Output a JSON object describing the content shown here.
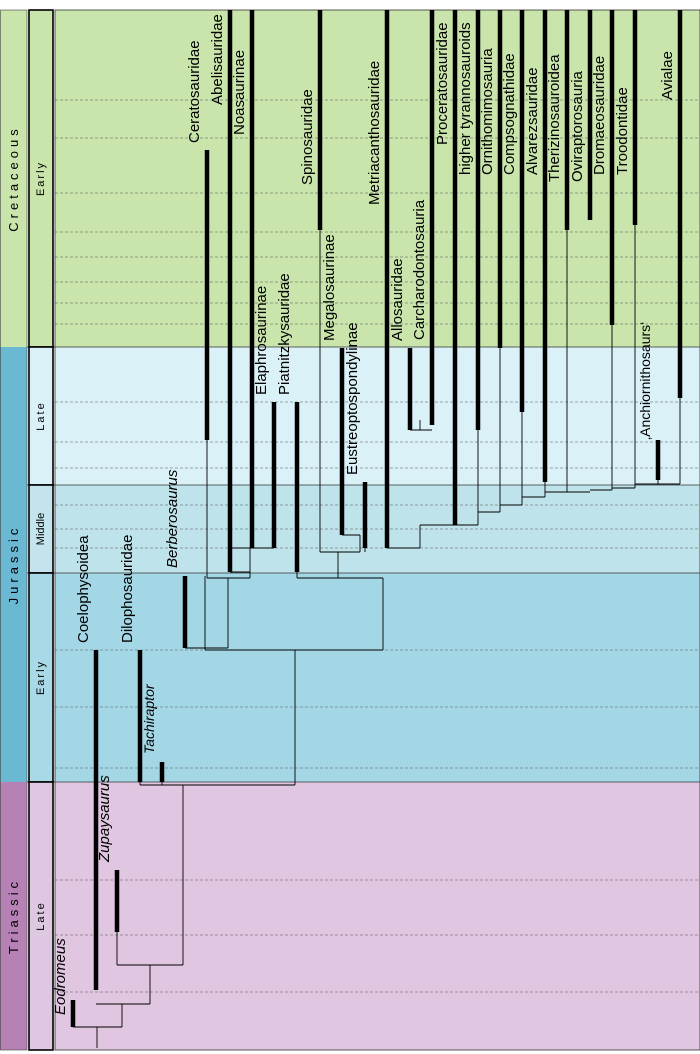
{
  "periods": [
    {
      "key": "cretaceous",
      "label": "Cretaceous",
      "color": "#c9e5ab",
      "band": "#d0e8b5"
    },
    {
      "key": "jurassic",
      "label": "Jurassic",
      "color": "#6ab8d2",
      "band": "#9fd3e0"
    },
    {
      "key": "triassic",
      "label": "Triassic",
      "color": "#b682b5",
      "band": "#e0c6e0"
    }
  ],
  "epochs": [
    {
      "key": "early-cretaceous",
      "label": "Early",
      "color": "#c9e5ab",
      "band": "#c9e5ab"
    },
    {
      "key": "late-jurassic",
      "label": "Late",
      "color": "#daf1f8",
      "band": "#daf1f8"
    },
    {
      "key": "middle-jurassic",
      "label": "Middle",
      "color": "#c3e4ec",
      "band": "#bfe3ea"
    },
    {
      "key": "early-jurassic",
      "label": "Early",
      "color": "#a9d8e6",
      "band": "#a3d7e6"
    },
    {
      "key": "late-triassic",
      "label": "Late",
      "color": "#dec7e1",
      "band": "#e0c6e0"
    }
  ],
  "colors": {
    "line": "#000000",
    "grid": "#555555",
    "border": "#000000"
  },
  "taxa": [
    {
      "key": "eodromeus",
      "label": "Eodromeus",
      "italic": true
    },
    {
      "key": "coelophysoidea",
      "label": "Coelophysoidea",
      "italic": false
    },
    {
      "key": "zupaysaurus",
      "label": "Zupaysaurus",
      "italic": true
    },
    {
      "key": "dilophosauridae",
      "label": "Dilophosauridae",
      "italic": false
    },
    {
      "key": "tachiraptor",
      "label": "Tachiraptor",
      "italic": true
    },
    {
      "key": "berberosaurus",
      "label": "Berberosaurus",
      "italic": true
    },
    {
      "key": "ceratosauridae",
      "label": "Ceratosauridae",
      "italic": false
    },
    {
      "key": "abelisauridae",
      "label": "Abelisauridae",
      "italic": false
    },
    {
      "key": "noasaurinae",
      "label": "Noasaurinae",
      "italic": false
    },
    {
      "key": "elaphrosaurinae",
      "label": "Elaphrosaurinae",
      "italic": false
    },
    {
      "key": "piatnitzkysauridae",
      "label": "Piatnitzkysauridae",
      "italic": false
    },
    {
      "key": "spinosauridae",
      "label": "Spinosauridae",
      "italic": false
    },
    {
      "key": "megalosaurinae",
      "label": "Megalosaurinae",
      "italic": false
    },
    {
      "key": "eustreptospondylinae",
      "label": "Eustreoptospondylinae",
      "italic": false
    },
    {
      "key": "metriacanthosauridae",
      "label": "Metriacanthosauridae",
      "italic": false
    },
    {
      "key": "allosauridae",
      "label": "Allosauridae",
      "italic": false
    },
    {
      "key": "carcharodontosauria",
      "label": "Carcharodontosauria",
      "italic": false
    },
    {
      "key": "proceratosauridae",
      "label": "Proceratosauridae",
      "italic": false
    },
    {
      "key": "higher-tyrannosauroids",
      "label": "higher tyrannosauroids",
      "italic": false
    },
    {
      "key": "ornithomimosauria",
      "label": "Ornithomimosauria",
      "italic": false
    },
    {
      "key": "compsognathidae",
      "label": "Compsognathidae",
      "italic": false
    },
    {
      "key": "alvarezsauridae",
      "label": "Alvarezsauridae",
      "italic": false
    },
    {
      "key": "therizinosauroidea",
      "label": "Therizinosauroidea",
      "italic": false
    },
    {
      "key": "oviraptorosauria",
      "label": "Oviraptorosauria",
      "italic": false
    },
    {
      "key": "dromaeosauridae",
      "label": "Dromaeosauridae",
      "italic": false
    },
    {
      "key": "troodontidae",
      "label": "Troodontidae",
      "italic": false
    },
    {
      "key": "anchiornithosaurs",
      "label": "‚Anchiornithosaurs‘",
      "italic": false
    },
    {
      "key": "avialae",
      "label": "Avialae",
      "italic": false
    }
  ]
}
